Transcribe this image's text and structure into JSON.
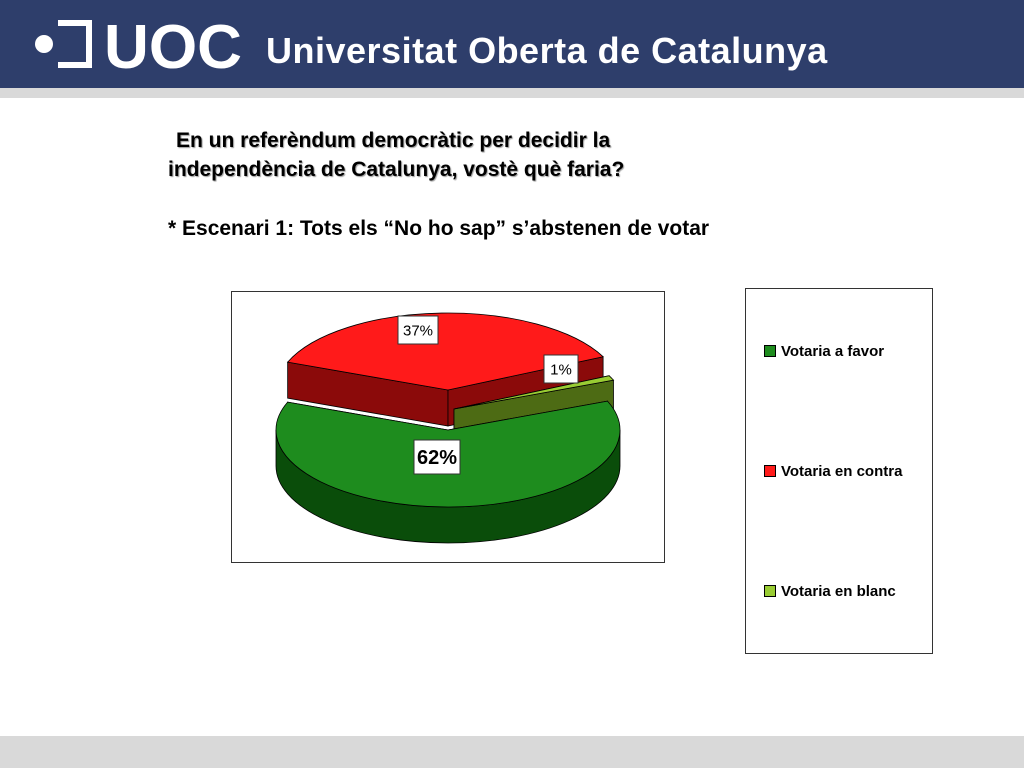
{
  "header": {
    "logo_text": "UOC",
    "institution": "Universitat Oberta de Catalunya",
    "background": "#2e3e6b"
  },
  "slide": {
    "question_line1": "En un referèndum democràtic per decidir la",
    "question_line2": "independència de Catalunya, vostè què faria?",
    "scenario": "* Escenari 1: Tots els “No ho sap” s’abstenen de votar"
  },
  "chart_data": {
    "type": "pie",
    "style": "3d-exploded",
    "title": "",
    "legend_position": "right",
    "slices": [
      {
        "label": "Votaria a favor",
        "value": 62,
        "data_label": "62%",
        "color": "#1e8c1e",
        "side_color": "#0a4d0a"
      },
      {
        "label": "Votaria en contra",
        "value": 37,
        "data_label": "37%",
        "color": "#ff1a1a",
        "side_color": "#8b0a0a"
      },
      {
        "label": "Votaria en blanc",
        "value": 1,
        "data_label": "1%",
        "color": "#99cc33",
        "side_color": "#4d6b14"
      }
    ]
  }
}
